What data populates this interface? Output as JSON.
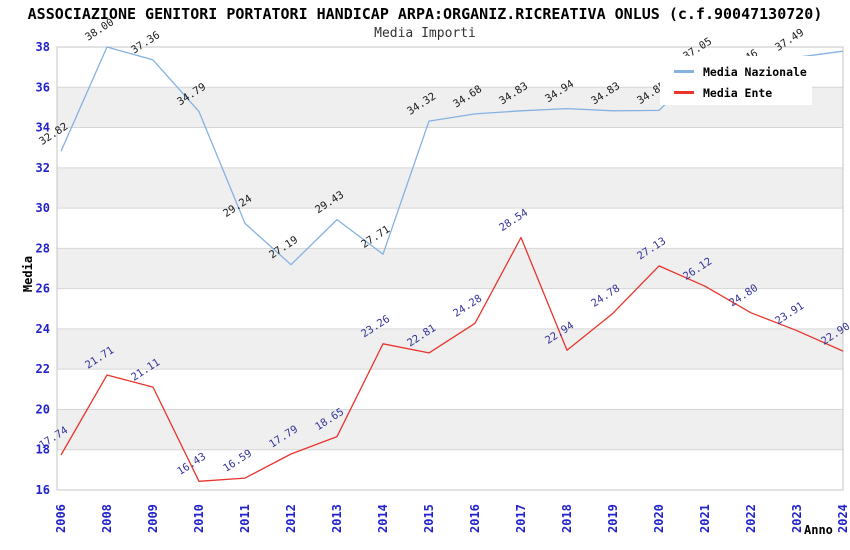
{
  "header": {
    "title": "ASSOCIAZIONE GENITORI PORTATORI HANDICAP ARPA:ORGANIZ.RICREATIVA ONLUS (c.f.90047130720)",
    "subtitle": "Media Importi"
  },
  "legend": {
    "items": [
      {
        "label": "Media Nazionale",
        "color": "#85b1e2"
      },
      {
        "label": "Media Ente",
        "color": "#e8352e"
      }
    ]
  },
  "axes": {
    "y_title": "Media",
    "x_title": "Anno",
    "y_ticks": [
      16,
      18,
      20,
      22,
      24,
      26,
      28,
      30,
      32,
      34,
      36,
      38
    ],
    "x_ticks": [
      "2006",
      "2008",
      "2009",
      "2010",
      "2011",
      "2012",
      "2013",
      "2014",
      "2015",
      "2016",
      "2017",
      "2018",
      "2019",
      "2020",
      "2021",
      "2022",
      "2023",
      "2024"
    ]
  },
  "colors": {
    "axis_tick": "#2222cc",
    "stripe": "#efefef",
    "gridline": "#d6d6d6",
    "plot_border": "#c4c4c4",
    "background": "#ffffff"
  },
  "chart_data": {
    "type": "line",
    "title": "Media Importi",
    "xlabel": "Anno",
    "ylabel": "Media",
    "ylim": [
      16,
      38
    ],
    "grid": true,
    "legend_position": "top-right",
    "categories": [
      "2006",
      "2008",
      "2009",
      "2010",
      "2011",
      "2012",
      "2013",
      "2014",
      "2015",
      "2016",
      "2017",
      "2018",
      "2019",
      "2020",
      "2021",
      "2022",
      "2023",
      "2024"
    ],
    "series": [
      {
        "name": "Media Nazionale",
        "color": "#85b1e2",
        "label_color": "#1a1a1a",
        "values": [
          32.82,
          38.0,
          37.36,
          34.79,
          29.24,
          27.19,
          29.43,
          27.71,
          34.32,
          34.68,
          34.83,
          34.94,
          34.83,
          34.85,
          37.05,
          36.46,
          37.49,
          37.79
        ],
        "labels": [
          "32.82",
          "38.00",
          "37.36",
          "34.79",
          "29.24",
          "27.19",
          "29.43",
          "27.71",
          "34.32",
          "34.68",
          "34.83",
          "34.94",
          "34.83",
          "34.85",
          "37.05",
          "36.46",
          "37.49",
          ""
        ]
      },
      {
        "name": "Media Ente",
        "color": "#e8352e",
        "label_color": "#333399",
        "values": [
          17.74,
          21.71,
          21.11,
          16.43,
          16.59,
          17.79,
          18.65,
          23.26,
          22.81,
          24.28,
          28.54,
          22.94,
          24.78,
          27.13,
          26.12,
          24.8,
          23.91,
          22.9
        ],
        "labels": [
          "17.74",
          "21.71",
          "21.11",
          "16.43",
          "16.59",
          "17.79",
          "18.65",
          "23.26",
          "22.81",
          "24.28",
          "28.54",
          "22.94",
          "24.78",
          "27.13",
          "26.12",
          "24.80",
          "23.91",
          "22.90"
        ]
      }
    ]
  }
}
